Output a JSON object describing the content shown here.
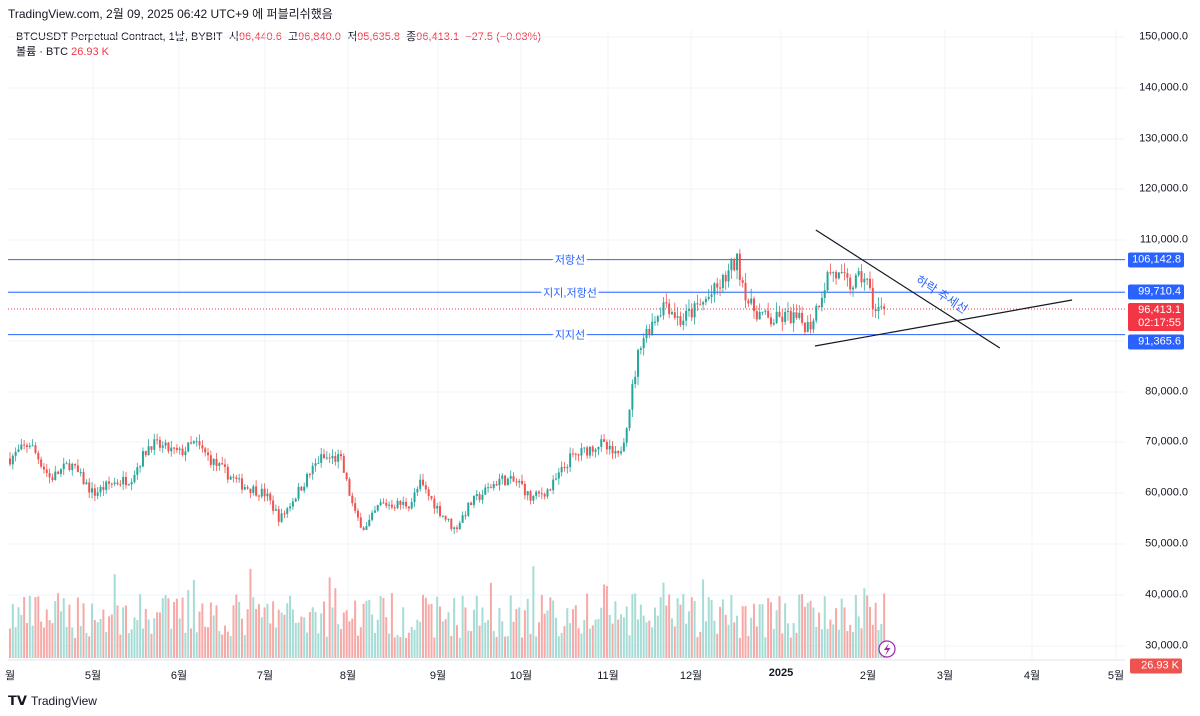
{
  "published": "TradingView.com, 2월 09, 2025 06:42 UTC+9 에 퍼블리쉬했음",
  "legend": {
    "symbol": "BTCUSDT Perpetual Contract, 1날, BYBIT",
    "o_label": "시",
    "o": "96,440.6",
    "h_label": "고",
    "h": "96,840.0",
    "l_label": "저",
    "l": "95,635.8",
    "c_label": "종",
    "c": "96,413.1",
    "change": "−27.5 (−0.03%)",
    "vol_label": "볼륨 · BTC",
    "vol": "26.93 K"
  },
  "y_ticks": [
    "150,000.0",
    "140,000.0",
    "130,000.0",
    "120,000.0",
    "110,000.0",
    "80,000.0",
    "70,000.0",
    "60,000.0",
    "50,000.0",
    "40,000.0",
    "30,000.0"
  ],
  "price_tags": {
    "resistance": "106,142.8",
    "support_resistance": "99,710.4",
    "last": "96,413.1",
    "countdown": "02:17:55",
    "support": "91,365.6",
    "volume": "26.93 K"
  },
  "x_ticks": [
    "월",
    "5월",
    "6월",
    "7월",
    "8월",
    "9월",
    "10월",
    "11월",
    "12월",
    "2025",
    "2월",
    "3월",
    "4월",
    "5월"
  ],
  "annotations": {
    "resistance": "저항선",
    "support_resistance": "지지,저항선",
    "support": "지지선",
    "downtrend": "하락 추세선"
  },
  "brand": "TradingView",
  "colors": {
    "up": "#26a69a",
    "down": "#ef5350",
    "line": "#2962ff",
    "tag_blue": "#2962ff",
    "tag_red": "#f23645"
  },
  "chart_data": {
    "type": "candlestick",
    "ylim": [
      30000,
      150000
    ],
    "levels": [
      106142.8,
      99710.4,
      91365.6
    ],
    "last_price": 96413.1,
    "path_months_price": [
      [
        0,
        67000
      ],
      [
        0.23,
        70000
      ],
      [
        0.47,
        63000
      ],
      [
        0.7,
        66000
      ],
      [
        0.97,
        60000
      ],
      [
        1.16,
        62000
      ],
      [
        1.4,
        63000
      ],
      [
        1.63,
        70000
      ],
      [
        1.97,
        68000
      ],
      [
        2.15,
        70000
      ],
      [
        2.38,
        66000
      ],
      [
        2.67,
        62000
      ],
      [
        2.97,
        60000
      ],
      [
        3.14,
        55000
      ],
      [
        3.37,
        61000
      ],
      [
        3.6,
        67000
      ],
      [
        3.84,
        67000
      ],
      [
        4.01,
        56000
      ],
      [
        4.13,
        53000
      ],
      [
        4.3,
        58000
      ],
      [
        4.65,
        58000
      ],
      [
        4.77,
        62000
      ],
      [
        4.98,
        57000
      ],
      [
        5.17,
        53000
      ],
      [
        5.35,
        58000
      ],
      [
        5.7,
        63000
      ],
      [
        5.94,
        62000
      ],
      [
        6.05,
        59000
      ],
      [
        6.28,
        61000
      ],
      [
        6.51,
        67000
      ],
      [
        6.86,
        70000
      ],
      [
        7.07,
        67000
      ],
      [
        7.15,
        72000
      ],
      [
        7.33,
        90000
      ],
      [
        7.62,
        98000
      ],
      [
        7.79,
        94000
      ],
      [
        8.02,
        97000
      ],
      [
        8.26,
        101000
      ],
      [
        8.45,
        106000
      ],
      [
        8.6,
        97000
      ],
      [
        8.84,
        94000
      ],
      [
        9.07,
        95000
      ],
      [
        9.3,
        93000
      ],
      [
        9.53,
        104000
      ],
      [
        9.77,
        101000
      ],
      [
        9.94,
        103000
      ],
      [
        10.06,
        96000
      ],
      [
        10.17,
        96413
      ]
    ],
    "trendlines": [
      {
        "name": "downtrend",
        "from": [
          9.37,
          111969
        ],
        "to": [
          11.51,
          88740
        ]
      },
      {
        "name": "uptrend",
        "from": [
          9.36,
          89134
        ],
        "to": [
          12.35,
          98189
        ]
      }
    ]
  }
}
